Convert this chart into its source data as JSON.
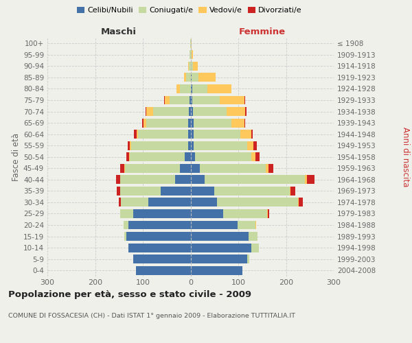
{
  "age_groups": [
    "0-4",
    "5-9",
    "10-14",
    "15-19",
    "20-24",
    "25-29",
    "30-34",
    "35-39",
    "40-44",
    "45-49",
    "50-54",
    "55-59",
    "60-64",
    "65-69",
    "70-74",
    "75-79",
    "80-84",
    "85-89",
    "90-94",
    "95-99",
    "100+"
  ],
  "birth_years": [
    "2004-2008",
    "1999-2003",
    "1994-1998",
    "1989-1993",
    "1984-1988",
    "1979-1983",
    "1974-1978",
    "1969-1973",
    "1964-1968",
    "1959-1963",
    "1954-1958",
    "1949-1953",
    "1944-1948",
    "1939-1943",
    "1934-1938",
    "1929-1933",
    "1924-1928",
    "1919-1923",
    "1914-1918",
    "1909-1913",
    "≤ 1908"
  ],
  "male_celibe": [
    115,
    120,
    130,
    135,
    130,
    120,
    88,
    62,
    32,
    22,
    12,
    5,
    5,
    5,
    3,
    2,
    0,
    0,
    0,
    0,
    0
  ],
  "male_coniugato": [
    0,
    0,
    0,
    4,
    10,
    28,
    58,
    85,
    115,
    115,
    115,
    120,
    105,
    88,
    75,
    42,
    22,
    10,
    4,
    2,
    1
  ],
  "male_vedovo": [
    0,
    0,
    0,
    0,
    0,
    0,
    0,
    0,
    1,
    2,
    2,
    2,
    3,
    5,
    15,
    10,
    8,
    4,
    1,
    0,
    0
  ],
  "male_divorziato": [
    0,
    0,
    0,
    0,
    0,
    0,
    5,
    8,
    8,
    8,
    5,
    5,
    5,
    3,
    1,
    1,
    0,
    0,
    0,
    0,
    0
  ],
  "female_nubile": [
    108,
    118,
    128,
    122,
    98,
    68,
    55,
    50,
    30,
    20,
    10,
    7,
    7,
    7,
    5,
    3,
    3,
    2,
    1,
    0,
    0
  ],
  "female_coniugata": [
    0,
    5,
    15,
    18,
    38,
    92,
    170,
    158,
    210,
    138,
    118,
    112,
    98,
    78,
    70,
    58,
    32,
    15,
    4,
    2,
    1
  ],
  "female_vedova": [
    0,
    0,
    0,
    0,
    1,
    2,
    2,
    2,
    4,
    6,
    8,
    12,
    22,
    28,
    40,
    52,
    50,
    35,
    10,
    3,
    1
  ],
  "female_divorziata": [
    0,
    0,
    0,
    0,
    1,
    3,
    8,
    10,
    15,
    10,
    8,
    8,
    3,
    2,
    2,
    1,
    0,
    0,
    0,
    0,
    0
  ],
  "colors": {
    "celibe": "#4472a8",
    "coniugato": "#c5d9a0",
    "vedovo": "#ffc85c",
    "divorziato": "#cc2222"
  },
  "xlim": 300,
  "title": "Popolazione per età, sesso e stato civile - 2009",
  "subtitle": "COMUNE DI FOSSACESIA (CH) - Dati ISTAT 1° gennaio 2009 - Elaborazione TUTTITALIA.IT",
  "ylabel_left": "Fasce di età",
  "ylabel_right": "Anni di nascita",
  "label_maschi": "Maschi",
  "label_femmine": "Femmine",
  "bg_color": "#f0f0eb",
  "grid_color": "#cccccc",
  "legend_labels": [
    "Celibi/Nubili",
    "Coniugati/e",
    "Vedovi/e",
    "Divorziati/e"
  ]
}
